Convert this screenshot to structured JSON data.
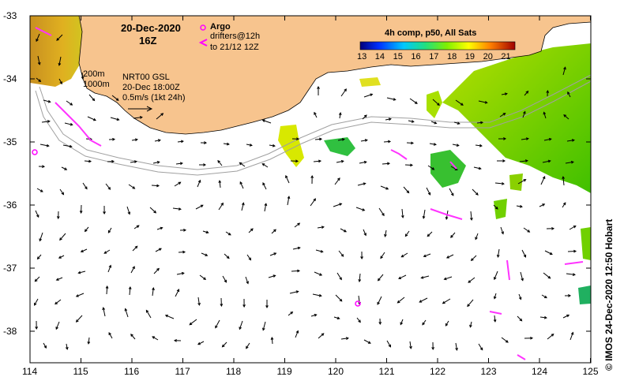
{
  "map": {
    "date_label": "20-Dec-2020",
    "time_label": "16Z",
    "legend_argo": "Argo",
    "legend_drifters_1": "drifters@12h",
    "legend_drifters_2": "to 21/12 12Z",
    "depth_200": "200m",
    "depth_1000": "1000m",
    "current_label_1": "NRT00 GSL",
    "current_label_2": "20-Dec 18:00Z",
    "current_scale_label": "0.5m/s (1kt 24h)",
    "colorbar_title": "4h comp, p50, All Sats",
    "colorbar_ticks": [
      "13",
      "14",
      "15",
      "16",
      "17",
      "18",
      "19",
      "20",
      "21"
    ],
    "lat_ticks": [
      "-33",
      "-34",
      "-35",
      "-36",
      "-37",
      "-38"
    ],
    "lon_ticks": [
      "114",
      "115",
      "116",
      "117",
      "118",
      "119",
      "120",
      "121",
      "122",
      "123",
      "124",
      "125"
    ],
    "credit": "© IMOS 24-Dec-2020 12:50 Hobart",
    "colors": {
      "land": "#f7c48e",
      "argo": "#ff00ff",
      "drifter": "#ff33ff",
      "isobath": "#a0a0a0"
    }
  }
}
